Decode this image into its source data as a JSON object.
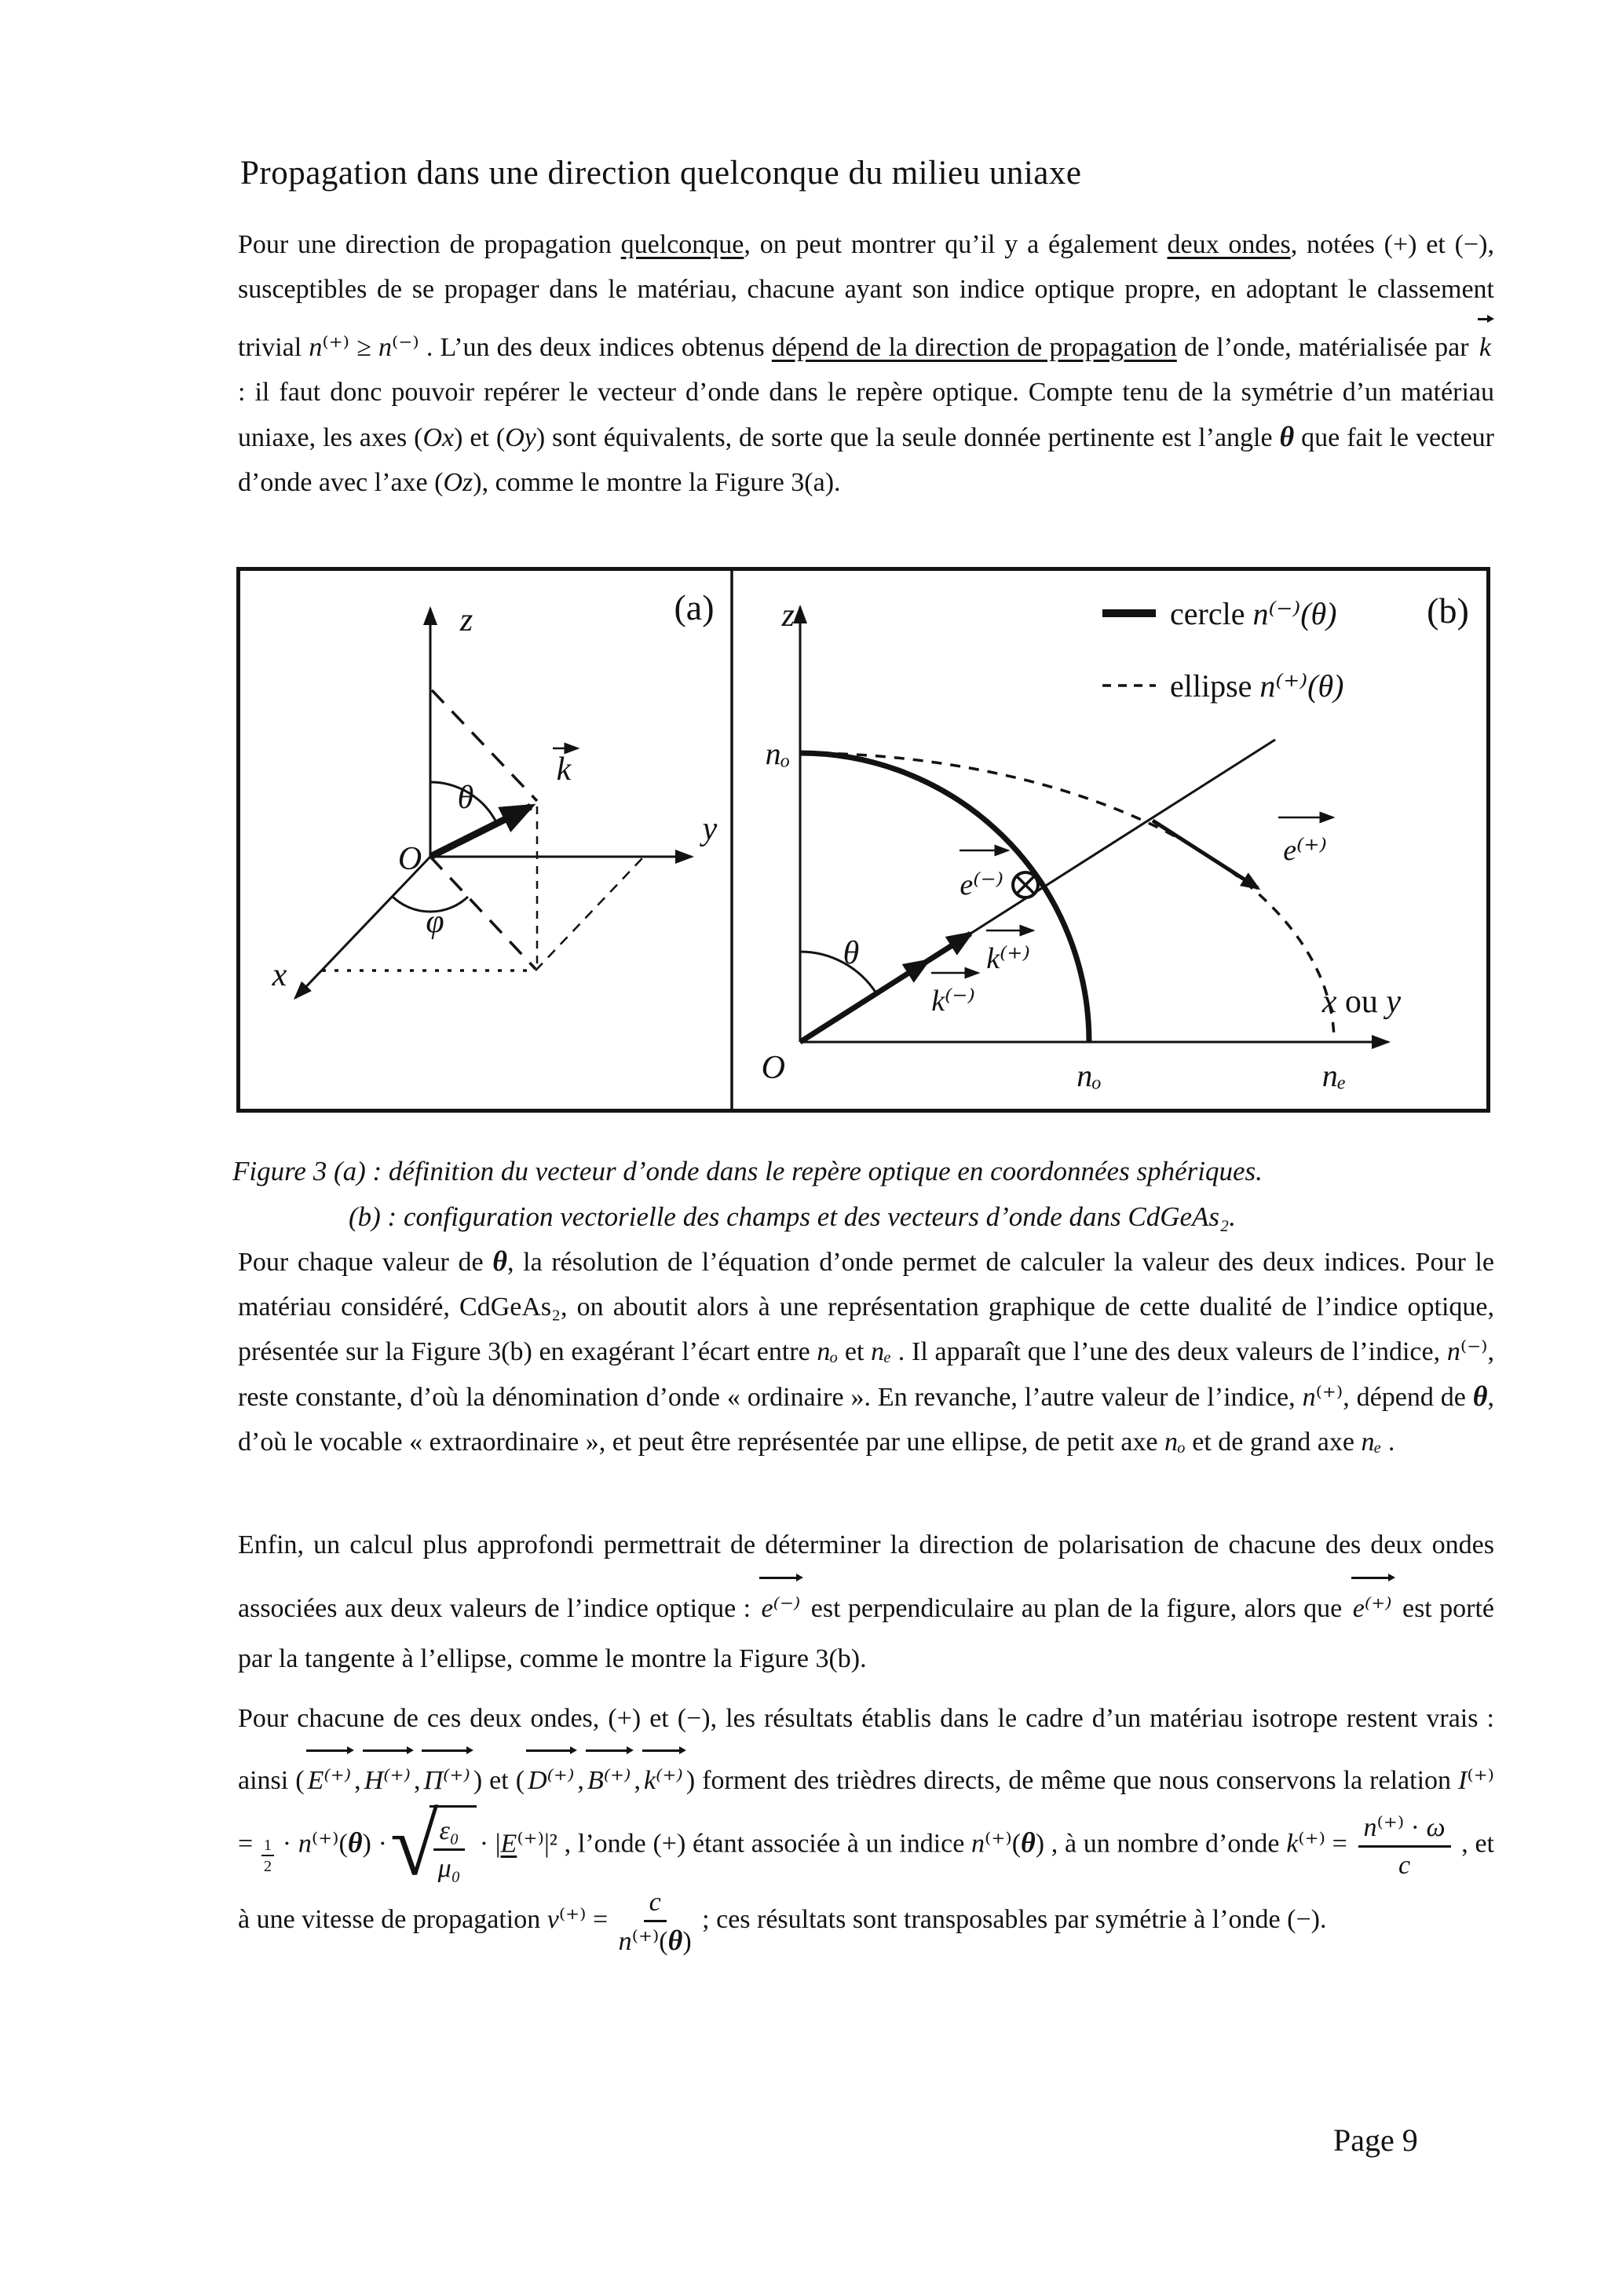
{
  "title": "Propagation dans une direction quelconque du milieu uniaxe",
  "page_number": "Page 9",
  "caption": {
    "line1": "Figure 3 (a) : définition du vecteur d’onde dans le repère optique en coordonnées sphériques.",
    "line2": "(b) : configuration vectorielle des champs et des vecteurs d’onde dans CdGeAs₂."
  },
  "figure": {
    "a": {
      "panel_label": "(a)",
      "axis_z": "z",
      "axis_y": "y",
      "axis_x": "x",
      "origin": "O",
      "theta": "θ",
      "phi": "φ",
      "k": "k"
    },
    "b": {
      "panel_label": "(b)",
      "axis_z": "z",
      "origin": "O",
      "xouy_x": "x",
      "xouy_ou": " ou ",
      "xouy_y": "y",
      "legend_circle_word": "cercle ",
      "legend_circle_math": "n⁽⁻⁾(θ)",
      "legend_ellipse_word": "ellipse ",
      "legend_ellipse_math": "n⁽⁺⁾(θ)",
      "no_z": "nₒ",
      "no_x": "nₒ",
      "ne_x": "nₑ",
      "theta": "θ",
      "k_minus": "k⁽⁻⁾",
      "k_plus": "k⁽⁺⁾",
      "e_minus": "e⁽⁻⁾",
      "e_plus": "e⁽⁺⁾"
    }
  },
  "p1": [
    {
      "t": "Pour une direction de propagation "
    },
    {
      "t": "quelconque",
      "c": "u"
    },
    {
      "t": ", on peut montrer qu’il y a également "
    },
    {
      "t": "deux ondes",
      "c": "u"
    },
    {
      "t": ", notées (+) et (−), susceptibles de se propager dans le matériau, chacune ayant son indice optique propre, en adoptant le classement trivial "
    },
    {
      "t": "n",
      "c": "i"
    },
    {
      "t": "⁽⁺⁾ ≥ "
    },
    {
      "t": "n",
      "c": "i"
    },
    {
      "t": "⁽⁻⁾ . L’un des deux indices obtenus "
    },
    {
      "t": "dépend de la direction de propagation",
      "c": "u"
    },
    {
      "t": " de l’onde, matérialisée par "
    },
    {
      "v": {
        "t": "k"
      }
    },
    {
      "t": " : il faut donc pouvoir repérer le vecteur d’onde dans le repère optique. Compte tenu de la symétrie d’un matériau uniaxe, les axes ("
    },
    {
      "t": "Ox",
      "c": "i"
    },
    {
      "t": ") et ("
    },
    {
      "t": "Oy",
      "c": "i"
    },
    {
      "t": ") sont équivalents, de sorte que la seule donnée pertinente est l’angle "
    },
    {
      "t": "θ",
      "c": "th"
    },
    {
      "t": " que fait le vecteur d’onde avec l’axe ("
    },
    {
      "t": "Oz",
      "c": "i"
    },
    {
      "t": "), comme le montre la Figure 3(a)."
    }
  ],
  "p2": [
    {
      "t": "Pour chaque valeur de "
    },
    {
      "t": "θ",
      "c": "th"
    },
    {
      "t": ", la résolution de l’équation d’onde permet de calculer la valeur des deux indices. Pour le matériau considéré, CdGeAs₂, on aboutit alors à une représentation graphique de cette dualité de l’indice optique, présentée sur la Figure 3(b) en exagérant l’écart entre "
    },
    {
      "t": "nₒ",
      "c": "i"
    },
    {
      "t": " et "
    },
    {
      "t": "nₑ",
      "c": "i"
    },
    {
      "t": " . Il apparaît que l’une des deux valeurs de l’indice, "
    },
    {
      "t": "n",
      "c": "i"
    },
    {
      "t": "⁽⁻⁾, reste constante, d’où la dénomination d’onde « ordinaire ». En revanche, l’autre valeur de l’indice, "
    },
    {
      "t": "n",
      "c": "i"
    },
    {
      "t": "⁽⁺⁾, dépend de "
    },
    {
      "t": "θ",
      "c": "th"
    },
    {
      "t": ", d’où le vocable « extraordinaire », et peut être représentée par une ellipse, de petit axe "
    },
    {
      "t": "nₒ",
      "c": "i"
    },
    {
      "t": " et de grand axe "
    },
    {
      "t": "nₑ",
      "c": "i"
    },
    {
      "t": " ."
    }
  ],
  "p3": [
    {
      "t": "Enfin, un calcul plus approfondi permettrait de déterminer la direction de polarisation de chacune des deux ondes associées aux deux valeurs de l’indice optique : "
    },
    {
      "v": {
        "t": "e⁽⁻⁾"
      }
    },
    {
      "t": " est perpendiculaire au plan de la figure, alors que "
    },
    {
      "v": {
        "t": "e⁽⁺⁾"
      }
    },
    {
      "t": " est porté par la tangente à l’ellipse, comme le montre la Figure 3(b)."
    }
  ],
  "p4": [
    {
      "t": "Pour chacune de ces deux ondes, (+) et (−), les résultats établis dans le cadre d’un matériau isotrope restent vrais : ainsi ("
    },
    {
      "v": {
        "t": "E⁽⁺⁾"
      }
    },
    {
      "t": ","
    },
    {
      "v": {
        "t": "H⁽⁺⁾"
      }
    },
    {
      "t": ","
    },
    {
      "v": {
        "t": "Π⁽⁺⁾"
      }
    },
    {
      "t": ") et ("
    },
    {
      "v": {
        "t": "D⁽⁺⁾"
      }
    },
    {
      "t": ","
    },
    {
      "v": {
        "t": "B⁽⁺⁾"
      }
    },
    {
      "t": ","
    },
    {
      "v": {
        "t": "k⁽⁺⁾"
      }
    },
    {
      "t": ") forment des trièdres directs, de même que nous conservons la relation "
    },
    {
      "t": "I",
      "c": "i"
    },
    {
      "t": "⁽⁺⁾ = "
    },
    {
      "f": {
        "n": [
          {
            "t": "1"
          }
        ],
        "d": [
          {
            "t": "2"
          }
        ]
      },
      "c": "small"
    },
    {
      "t": " · "
    },
    {
      "t": "n",
      "c": "i"
    },
    {
      "t": "⁽⁺⁾("
    },
    {
      "t": "θ",
      "c": "th"
    },
    {
      "t": ") ·"
    },
    {
      "s": [
        {
          "f": {
            "n": [
              {
                "t": "ε₀",
                "c": "i"
              }
            ],
            "d": [
              {
                "t": "μ₀",
                "c": "i"
              }
            ]
          }
        }
      ]
    },
    {
      "t": "· |"
    },
    {
      "t": "E",
      "c": "iu"
    },
    {
      "t": "⁽⁺⁾|² , l’onde (+) étant associée à un indice "
    },
    {
      "t": "n",
      "c": "i"
    },
    {
      "t": "⁽⁺⁾("
    },
    {
      "t": "θ",
      "c": "th"
    },
    {
      "t": ") , à un nombre d’onde "
    },
    {
      "t": "k",
      "c": "i"
    },
    {
      "t": "⁽⁺⁾ = "
    },
    {
      "f": {
        "n": [
          {
            "t": "n",
            "c": "i"
          },
          {
            "t": "⁽⁺⁾ · "
          },
          {
            "t": "ω",
            "c": "i"
          }
        ],
        "d": [
          {
            "t": "c",
            "c": "i"
          }
        ]
      }
    },
    {
      "t": " , et à une vitesse de propagation "
    },
    {
      "t": "v",
      "c": "i"
    },
    {
      "t": "⁽⁺⁾ = "
    },
    {
      "f": {
        "n": [
          {
            "t": "c",
            "c": "i"
          }
        ],
        "d": [
          {
            "t": "n",
            "c": "i"
          },
          {
            "t": "⁽⁺⁾("
          },
          {
            "t": "θ",
            "c": "th"
          },
          {
            "t": ")"
          }
        ]
      }
    },
    {
      "t": " ; ces résultats sont transposables par symétrie à l’onde (−)."
    }
  ]
}
